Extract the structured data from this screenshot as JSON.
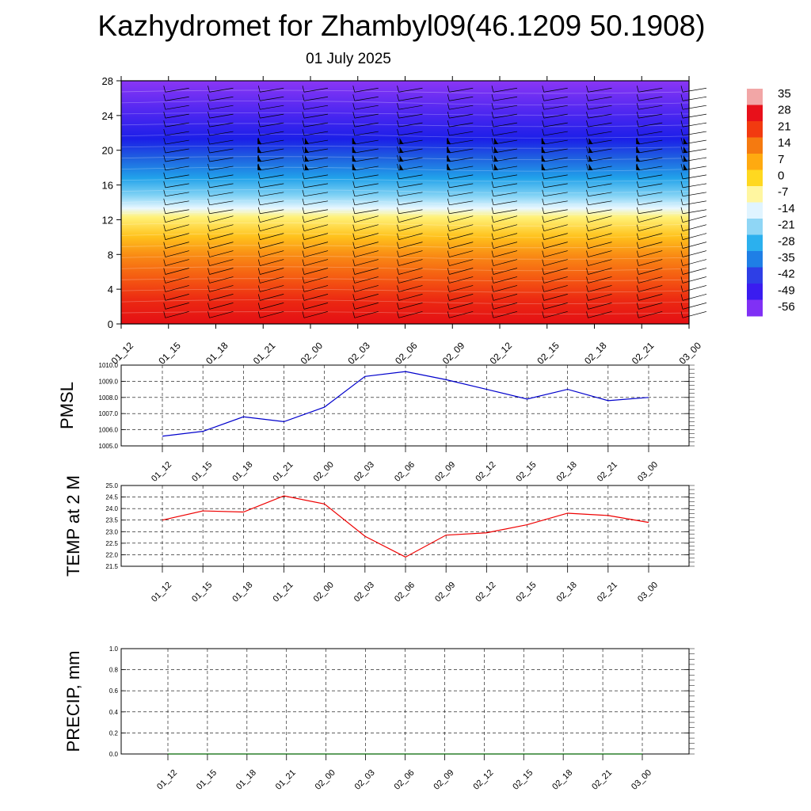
{
  "title": "Kazhydromet for Zhambyl09(46.1209 50.1908)",
  "subtitle": "01 July 2025",
  "time_labels": [
    "01_12",
    "01_15",
    "01_18",
    "01_21",
    "02_00",
    "02_03",
    "02_06",
    "02_09",
    "02_12",
    "02_15",
    "02_18",
    "02_21",
    "03_00"
  ],
  "chart_data": [
    {
      "type": "heatmap",
      "x_categories": [
        "01_12",
        "01_15",
        "01_18",
        "01_21",
        "02_00",
        "02_03",
        "02_06",
        "02_09",
        "02_12",
        "02_15",
        "02_18",
        "02_21",
        "03_00"
      ],
      "y_ticks": [
        0,
        4,
        8,
        12,
        16,
        20,
        24,
        28
      ],
      "ylim": [
        0,
        28
      ],
      "colorbar_labels": [
        "35",
        "28",
        "21",
        "14",
        "7",
        "0",
        "-7",
        "-14",
        "-21",
        "-28",
        "-35",
        "-42",
        "-49",
        "-56"
      ],
      "colorbar_colors": [
        "#f2a6a6",
        "#e8101a",
        "#f23a10",
        "#f57a10",
        "#ffaa10",
        "#ffd820",
        "#fff6a0",
        "#e0f4ff",
        "#8fd6f5",
        "#2bb0ee",
        "#1f7fe6",
        "#2e3fe6",
        "#3a1cf0",
        "#8030f5"
      ]
    },
    {
      "type": "line",
      "ylabel": "PMSL",
      "x": [
        "01_12",
        "01_15",
        "01_18",
        "01_21",
        "02_00",
        "02_03",
        "02_06",
        "02_09",
        "02_12",
        "02_15",
        "02_18",
        "02_21",
        "03_00"
      ],
      "values": [
        1005.6,
        1005.9,
        1006.8,
        1006.5,
        1007.4,
        1009.3,
        1009.6,
        1009.1,
        1008.5,
        1007.9,
        1008.5,
        1007.8,
        1008.0
      ],
      "ylim": [
        1005.0,
        1010.0
      ],
      "yticks": [
        "1005.0",
        "1006.0",
        "1007.0",
        "1008.0",
        "1009.0",
        "1010.0"
      ],
      "color": "#0000cc"
    },
    {
      "type": "line",
      "ylabel": "TEMP at 2 M",
      "x": [
        "01_12",
        "01_15",
        "01_18",
        "01_21",
        "02_00",
        "02_03",
        "02_06",
        "02_09",
        "02_12",
        "02_15",
        "02_18",
        "02_21",
        "03_00"
      ],
      "values": [
        23.5,
        23.9,
        23.85,
        24.55,
        24.2,
        22.8,
        21.9,
        22.85,
        22.95,
        23.3,
        23.8,
        23.7,
        23.4
      ],
      "ylim": [
        21.5,
        25.0
      ],
      "yticks": [
        "21.5",
        "22.0",
        "22.5",
        "23.0",
        "23.5",
        "24.0",
        "24.5",
        "25.0"
      ],
      "color": "#ee0000"
    },
    {
      "type": "line",
      "ylabel": "PRECIP, mm",
      "x": [
        "01_12",
        "01_15",
        "01_18",
        "01_21",
        "02_00",
        "02_03",
        "02_06",
        "02_09",
        "02_12",
        "02_15",
        "02_18",
        "02_21",
        "03_00"
      ],
      "values": [
        0,
        0,
        0,
        0,
        0,
        0,
        0,
        0,
        0,
        0,
        0,
        0,
        0
      ],
      "ylim": [
        0.0,
        1.0
      ],
      "yticks": [
        "0.0",
        "0.2",
        "0.4",
        "0.6",
        "0.8",
        "1.0"
      ],
      "color": "#006600"
    }
  ]
}
